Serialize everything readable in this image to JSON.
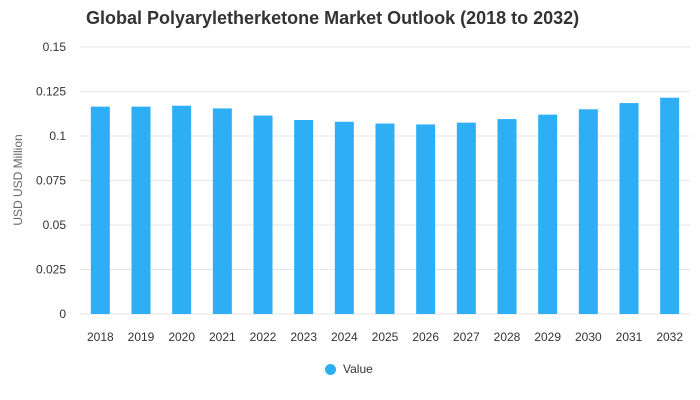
{
  "chart_data": {
    "type": "bar",
    "title": "Global Polyaryletherketone Market Outlook (2018 to 2032)",
    "xlabel": "",
    "ylabel": "USD USD Million",
    "categories": [
      "2018",
      "2019",
      "2020",
      "2021",
      "2022",
      "2023",
      "2024",
      "2025",
      "2026",
      "2027",
      "2028",
      "2029",
      "2030",
      "2031",
      "2032"
    ],
    "series": [
      {
        "name": "Value",
        "color": "#2EAEF5",
        "values": [
          0.1165,
          0.1165,
          0.117,
          0.1155,
          0.1115,
          0.109,
          0.108,
          0.107,
          0.1065,
          0.1075,
          0.1095,
          0.112,
          0.115,
          0.1185,
          0.1215
        ]
      }
    ],
    "ylim": [
      0,
      0.15
    ],
    "yticks": [
      "0",
      "0.025",
      "0.05",
      "0.075",
      "0.1",
      "0.125",
      "0.15"
    ],
    "ytick_values": [
      0,
      0.025,
      0.05,
      0.075,
      0.1,
      0.125,
      0.15
    ],
    "grid": true,
    "legend_position": "bottom-center"
  }
}
